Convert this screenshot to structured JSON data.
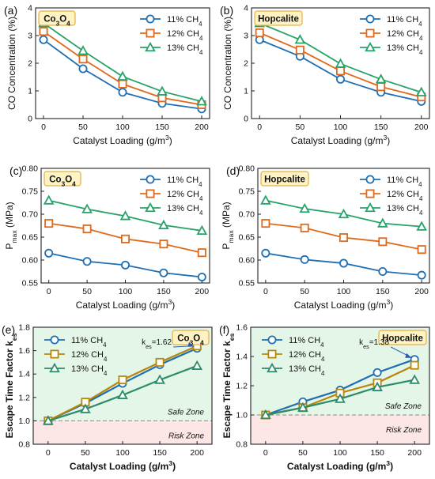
{
  "colors": {
    "s11": "#1f6fb2",
    "s12": "#e06a1b",
    "s13": "#27a36a",
    "s12_e": "#b8860b",
    "s13_e": "#2e8b6a",
    "label_box_bg": "#fff3c4",
    "label_box_border": "#e0b04a",
    "safe_zone": "#e4f6e8",
    "risk_zone": "#fde6e6"
  },
  "chart_data": [
    {
      "panel": "(a)",
      "type": "line",
      "badge": "Co3O4",
      "xlabel": "Catalyst Loading (g/m3)",
      "ylabel": "CO Concentration (%)",
      "x": [
        0,
        50,
        100,
        150,
        200
      ],
      "xlim": [
        -10,
        210
      ],
      "ylim": [
        0,
        4
      ],
      "xticks": [
        "0",
        "50",
        "100",
        "150",
        "200"
      ],
      "yticks": [
        "0",
        "1",
        "2",
        "3",
        "4"
      ],
      "series": [
        {
          "name": "11% CH4",
          "values": [
            2.85,
            1.8,
            0.95,
            0.55,
            0.35
          ]
        },
        {
          "name": "12% CH4",
          "values": [
            3.15,
            2.15,
            1.25,
            0.75,
            0.5
          ]
        },
        {
          "name": "13% CH4",
          "values": [
            3.45,
            2.45,
            1.52,
            0.98,
            0.62
          ]
        }
      ]
    },
    {
      "panel": "(b)",
      "type": "line",
      "badge": "Hopcalite",
      "xlabel": "Catalyst Loading (g/m3)",
      "ylabel": "CO Concentration (%)",
      "x": [
        0,
        50,
        100,
        150,
        200
      ],
      "xlim": [
        -10,
        210
      ],
      "ylim": [
        0,
        4
      ],
      "xticks": [
        "0",
        "50",
        "100",
        "150",
        "200"
      ],
      "yticks": [
        "0",
        "1",
        "2",
        "3",
        "4"
      ],
      "series": [
        {
          "name": "11% CH4",
          "values": [
            2.85,
            2.25,
            1.42,
            0.95,
            0.62
          ]
        },
        {
          "name": "12% CH4",
          "values": [
            3.1,
            2.48,
            1.72,
            1.15,
            0.78
          ]
        },
        {
          "name": "13% CH4",
          "values": [
            3.45,
            2.85,
            1.98,
            1.42,
            0.95
          ]
        }
      ]
    },
    {
      "panel": "(c)",
      "type": "line",
      "badge": "Co3O4",
      "xlabel": "Catalyst Loading (g/m3)",
      "ylabel": "Pmax (MPa)",
      "x": [
        0,
        50,
        100,
        150,
        200
      ],
      "xlim": [
        -10,
        210
      ],
      "ylim": [
        0.55,
        0.8
      ],
      "xticks": [
        "0",
        "50",
        "100",
        "150",
        "200"
      ],
      "yticks": [
        "0.55",
        "0.60",
        "0.65",
        "0.70",
        "0.75",
        "0.80"
      ],
      "series": [
        {
          "name": "11% CH4",
          "values": [
            0.615,
            0.597,
            0.589,
            0.572,
            0.563
          ]
        },
        {
          "name": "12% CH4",
          "values": [
            0.68,
            0.668,
            0.646,
            0.635,
            0.616
          ]
        },
        {
          "name": "13% CH4",
          "values": [
            0.73,
            0.711,
            0.696,
            0.676,
            0.664
          ]
        }
      ]
    },
    {
      "panel": "(d)",
      "type": "line",
      "badge": "Hopcalite",
      "xlabel": "Catalyst Loading (g/m3)",
      "ylabel": "Pmax (MPa)",
      "x": [
        0,
        50,
        100,
        150,
        200
      ],
      "xlim": [
        -10,
        210
      ],
      "ylim": [
        0.55,
        0.8
      ],
      "xticks": [
        "0",
        "50",
        "100",
        "150",
        "200"
      ],
      "yticks": [
        "0.55",
        "0.60",
        "0.65",
        "0.70",
        "0.75",
        "0.80"
      ],
      "series": [
        {
          "name": "11% CH4",
          "values": [
            0.615,
            0.601,
            0.593,
            0.575,
            0.567
          ]
        },
        {
          "name": "12% CH4",
          "values": [
            0.68,
            0.67,
            0.649,
            0.64,
            0.623
          ]
        },
        {
          "name": "13% CH4",
          "values": [
            0.73,
            0.712,
            0.7,
            0.68,
            0.673
          ]
        }
      ]
    },
    {
      "panel": "(e)",
      "type": "line",
      "badge": "Co3O4",
      "xlabel": "Catalyst Loading (g/m3)",
      "ylabel": "Escape Time Factor kes",
      "x": [
        0,
        50,
        100,
        150,
        200
      ],
      "xlim": [
        -20,
        220
      ],
      "ylim": [
        0.8,
        1.8
      ],
      "xticks": [
        "0",
        "50",
        "100",
        "150",
        "200"
      ],
      "yticks": [
        "0.8",
        "1.0",
        "1.2",
        "1.4",
        "1.6",
        "1.8"
      ],
      "threshold": 1.0,
      "zones": {
        "safe": "Safe Zone",
        "risk": "Risk Zone"
      },
      "annotation": {
        "text": "kes=1.62",
        "x": 200,
        "y": 1.62
      },
      "series": [
        {
          "name": "11% CH4",
          "values": [
            1.0,
            1.15,
            1.32,
            1.48,
            1.62
          ]
        },
        {
          "name": "12% CH4",
          "values": [
            1.0,
            1.16,
            1.35,
            1.5,
            1.64
          ]
        },
        {
          "name": "13% CH4",
          "values": [
            1.0,
            1.1,
            1.22,
            1.35,
            1.47
          ]
        }
      ]
    },
    {
      "panel": "(f)",
      "type": "line",
      "badge": "Hopcalite",
      "xlabel": "Catalyst Loading (g/m3)",
      "ylabel": "Escape Time Factor kes",
      "x": [
        0,
        50,
        100,
        150,
        200
      ],
      "xlim": [
        -20,
        220
      ],
      "ylim": [
        0.8,
        1.6
      ],
      "xticks": [
        "0",
        "50",
        "100",
        "150",
        "200"
      ],
      "yticks": [
        "0.8",
        "1.0",
        "1.2",
        "1.4",
        "1.6"
      ],
      "threshold": 1.0,
      "zones": {
        "safe": "Safe Zone",
        "risk": "Risk Zone"
      },
      "annotation": {
        "text": "kes=1.38",
        "x": 200,
        "y": 1.38
      },
      "series": [
        {
          "name": "11% CH4",
          "values": [
            1.0,
            1.09,
            1.17,
            1.29,
            1.38
          ]
        },
        {
          "name": "12% CH4",
          "values": [
            1.0,
            1.05,
            1.15,
            1.22,
            1.34
          ]
        },
        {
          "name": "13% CH4",
          "values": [
            1.0,
            1.05,
            1.11,
            1.19,
            1.24
          ]
        }
      ]
    }
  ]
}
